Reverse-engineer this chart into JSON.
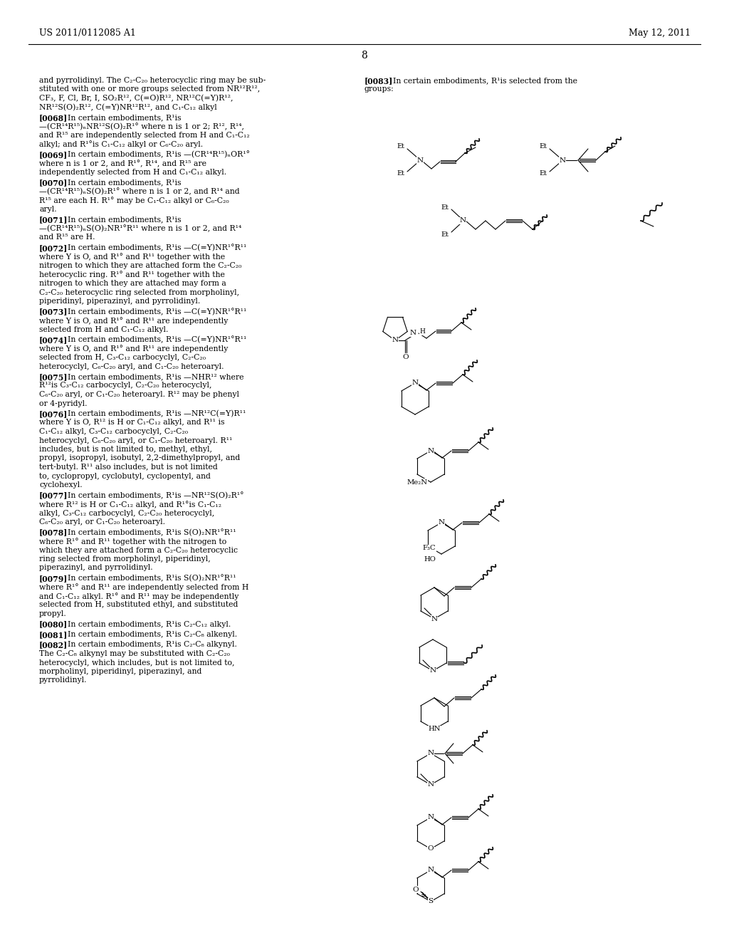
{
  "bg": "#ffffff",
  "header_left": "US 2011/0112085 A1",
  "header_right": "May 12, 2011",
  "page_num": "8"
}
